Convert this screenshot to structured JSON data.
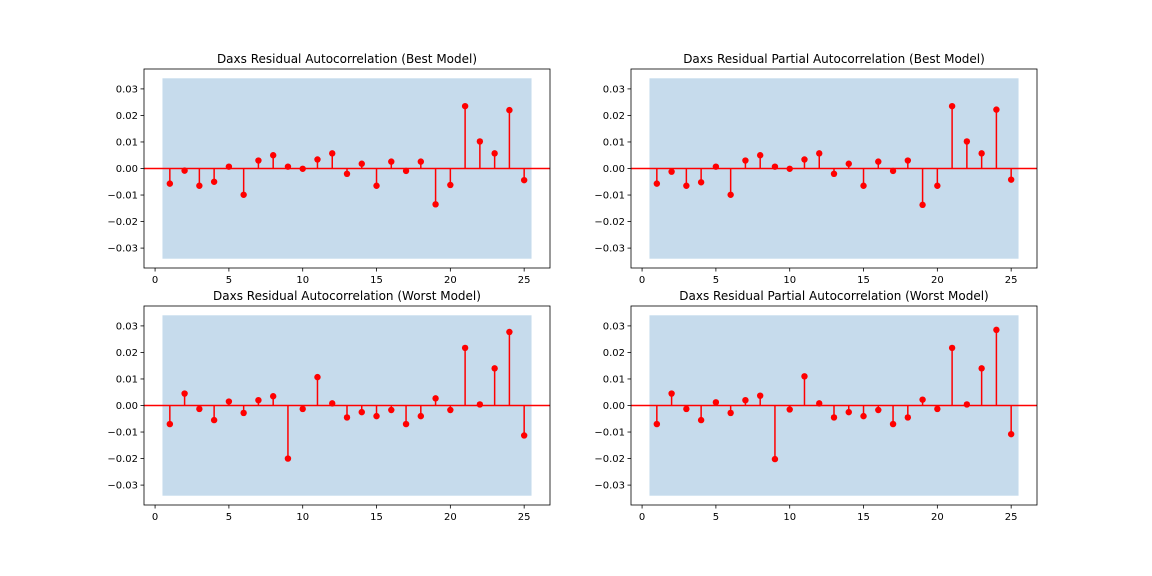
{
  "chart_data": [
    {
      "type": "stem",
      "title": "Daxs Residual Autocorrelation (Best Model)",
      "xlabel": "",
      "ylabel": "",
      "xlim": [
        -0.75,
        26.75
      ],
      "ylim": [
        -0.0375,
        0.0375
      ],
      "xticks": [
        0,
        5,
        10,
        15,
        20,
        25
      ],
      "yticks": [
        -0.03,
        -0.02,
        -0.01,
        0.0,
        0.01,
        0.02,
        0.03
      ],
      "ytick_labels": [
        "−0.03",
        "−0.02",
        "−0.01",
        "0.00",
        "0.01",
        "0.02",
        "0.03"
      ],
      "confidence_band": {
        "x_from": 0.5,
        "x_to": 25.5,
        "lower": -0.034,
        "upper": 0.034,
        "color": "#c6dbec"
      },
      "color": "#ff0000",
      "x": [
        1,
        2,
        3,
        4,
        5,
        6,
        7,
        8,
        9,
        10,
        11,
        12,
        13,
        14,
        15,
        16,
        17,
        18,
        19,
        20,
        21,
        22,
        23,
        24,
        25
      ],
      "values": [
        -0.0057,
        -0.0008,
        -0.0065,
        -0.005,
        0.0007,
        -0.0099,
        0.003,
        0.005,
        0.0007,
        -0.0001,
        0.0034,
        0.0057,
        -0.002,
        0.0018,
        -0.0065,
        0.0026,
        -0.0009,
        0.0026,
        -0.0135,
        -0.0062,
        0.0235,
        0.0102,
        0.0057,
        0.022,
        -0.0044
      ]
    },
    {
      "type": "stem",
      "title": "Daxs Residual Partial Autocorrelation (Best Model)",
      "xlabel": "",
      "ylabel": "",
      "xlim": [
        -0.75,
        26.75
      ],
      "ylim": [
        -0.0375,
        0.0375
      ],
      "xticks": [
        0,
        5,
        10,
        15,
        20,
        25
      ],
      "yticks": [
        -0.03,
        -0.02,
        -0.01,
        0.0,
        0.01,
        0.02,
        0.03
      ],
      "ytick_labels": [
        "−0.03",
        "−0.02",
        "−0.01",
        "0.00",
        "0.01",
        "0.02",
        "0.03"
      ],
      "confidence_band": {
        "x_from": 0.5,
        "x_to": 25.5,
        "lower": -0.034,
        "upper": 0.034,
        "color": "#c6dbec"
      },
      "color": "#ff0000",
      "x": [
        1,
        2,
        3,
        4,
        5,
        6,
        7,
        8,
        9,
        10,
        11,
        12,
        13,
        14,
        15,
        16,
        17,
        18,
        19,
        20,
        21,
        22,
        23,
        24,
        25
      ],
      "values": [
        -0.0057,
        -0.0012,
        -0.0065,
        -0.0052,
        0.0007,
        -0.0099,
        0.003,
        0.005,
        0.0007,
        -0.0001,
        0.0034,
        0.0057,
        -0.002,
        0.0018,
        -0.0065,
        0.0026,
        -0.0009,
        0.003,
        -0.0137,
        -0.0065,
        0.0235,
        0.0102,
        0.0057,
        0.0222,
        -0.0042
      ]
    },
    {
      "type": "stem",
      "title": "Daxs Residual Autocorrelation (Worst Model)",
      "xlabel": "",
      "ylabel": "",
      "xlim": [
        -0.75,
        26.75
      ],
      "ylim": [
        -0.0375,
        0.0375
      ],
      "xticks": [
        0,
        5,
        10,
        15,
        20,
        25
      ],
      "yticks": [
        -0.03,
        -0.02,
        -0.01,
        0.0,
        0.01,
        0.02,
        0.03
      ],
      "ytick_labels": [
        "−0.03",
        "−0.02",
        "−0.01",
        "0.00",
        "0.01",
        "0.02",
        "0.03"
      ],
      "confidence_band": {
        "x_from": 0.5,
        "x_to": 25.5,
        "lower": -0.034,
        "upper": 0.034,
        "color": "#c6dbec"
      },
      "color": "#ff0000",
      "x": [
        1,
        2,
        3,
        4,
        5,
        6,
        7,
        8,
        9,
        10,
        11,
        12,
        13,
        14,
        15,
        16,
        17,
        18,
        19,
        20,
        21,
        22,
        23,
        24,
        25
      ],
      "values": [
        -0.007,
        0.0045,
        -0.0013,
        -0.0055,
        0.0015,
        -0.0028,
        0.002,
        0.0035,
        -0.02,
        -0.0013,
        0.0107,
        0.0008,
        -0.0045,
        -0.0025,
        -0.004,
        -0.0017,
        -0.007,
        -0.004,
        0.0027,
        -0.0017,
        0.0217,
        0.0004,
        0.014,
        0.0277,
        -0.0113
      ]
    },
    {
      "type": "stem",
      "title": "Daxs Residual Partial Autocorrelation (Worst Model)",
      "xlabel": "",
      "ylabel": "",
      "xlim": [
        -0.75,
        26.75
      ],
      "ylim": [
        -0.0375,
        0.0375
      ],
      "xticks": [
        0,
        5,
        10,
        15,
        20,
        25
      ],
      "yticks": [
        -0.03,
        -0.02,
        -0.01,
        0.0,
        0.01,
        0.02,
        0.03
      ],
      "ytick_labels": [
        "−0.03",
        "−0.02",
        "−0.01",
        "0.00",
        "0.01",
        "0.02",
        "0.03"
      ],
      "confidence_band": {
        "x_from": 0.5,
        "x_to": 25.5,
        "lower": -0.034,
        "upper": 0.034,
        "color": "#c6dbec"
      },
      "color": "#ff0000",
      "x": [
        1,
        2,
        3,
        4,
        5,
        6,
        7,
        8,
        9,
        10,
        11,
        12,
        13,
        14,
        15,
        16,
        17,
        18,
        19,
        20,
        21,
        22,
        23,
        24,
        25
      ],
      "values": [
        -0.007,
        0.0045,
        -0.0013,
        -0.0055,
        0.0012,
        -0.0028,
        0.002,
        0.0037,
        -0.0202,
        -0.0015,
        0.011,
        0.0008,
        -0.0045,
        -0.0025,
        -0.004,
        -0.0017,
        -0.007,
        -0.0045,
        0.0022,
        -0.0013,
        0.0217,
        0.0004,
        0.014,
        0.0285,
        -0.0108
      ]
    }
  ]
}
